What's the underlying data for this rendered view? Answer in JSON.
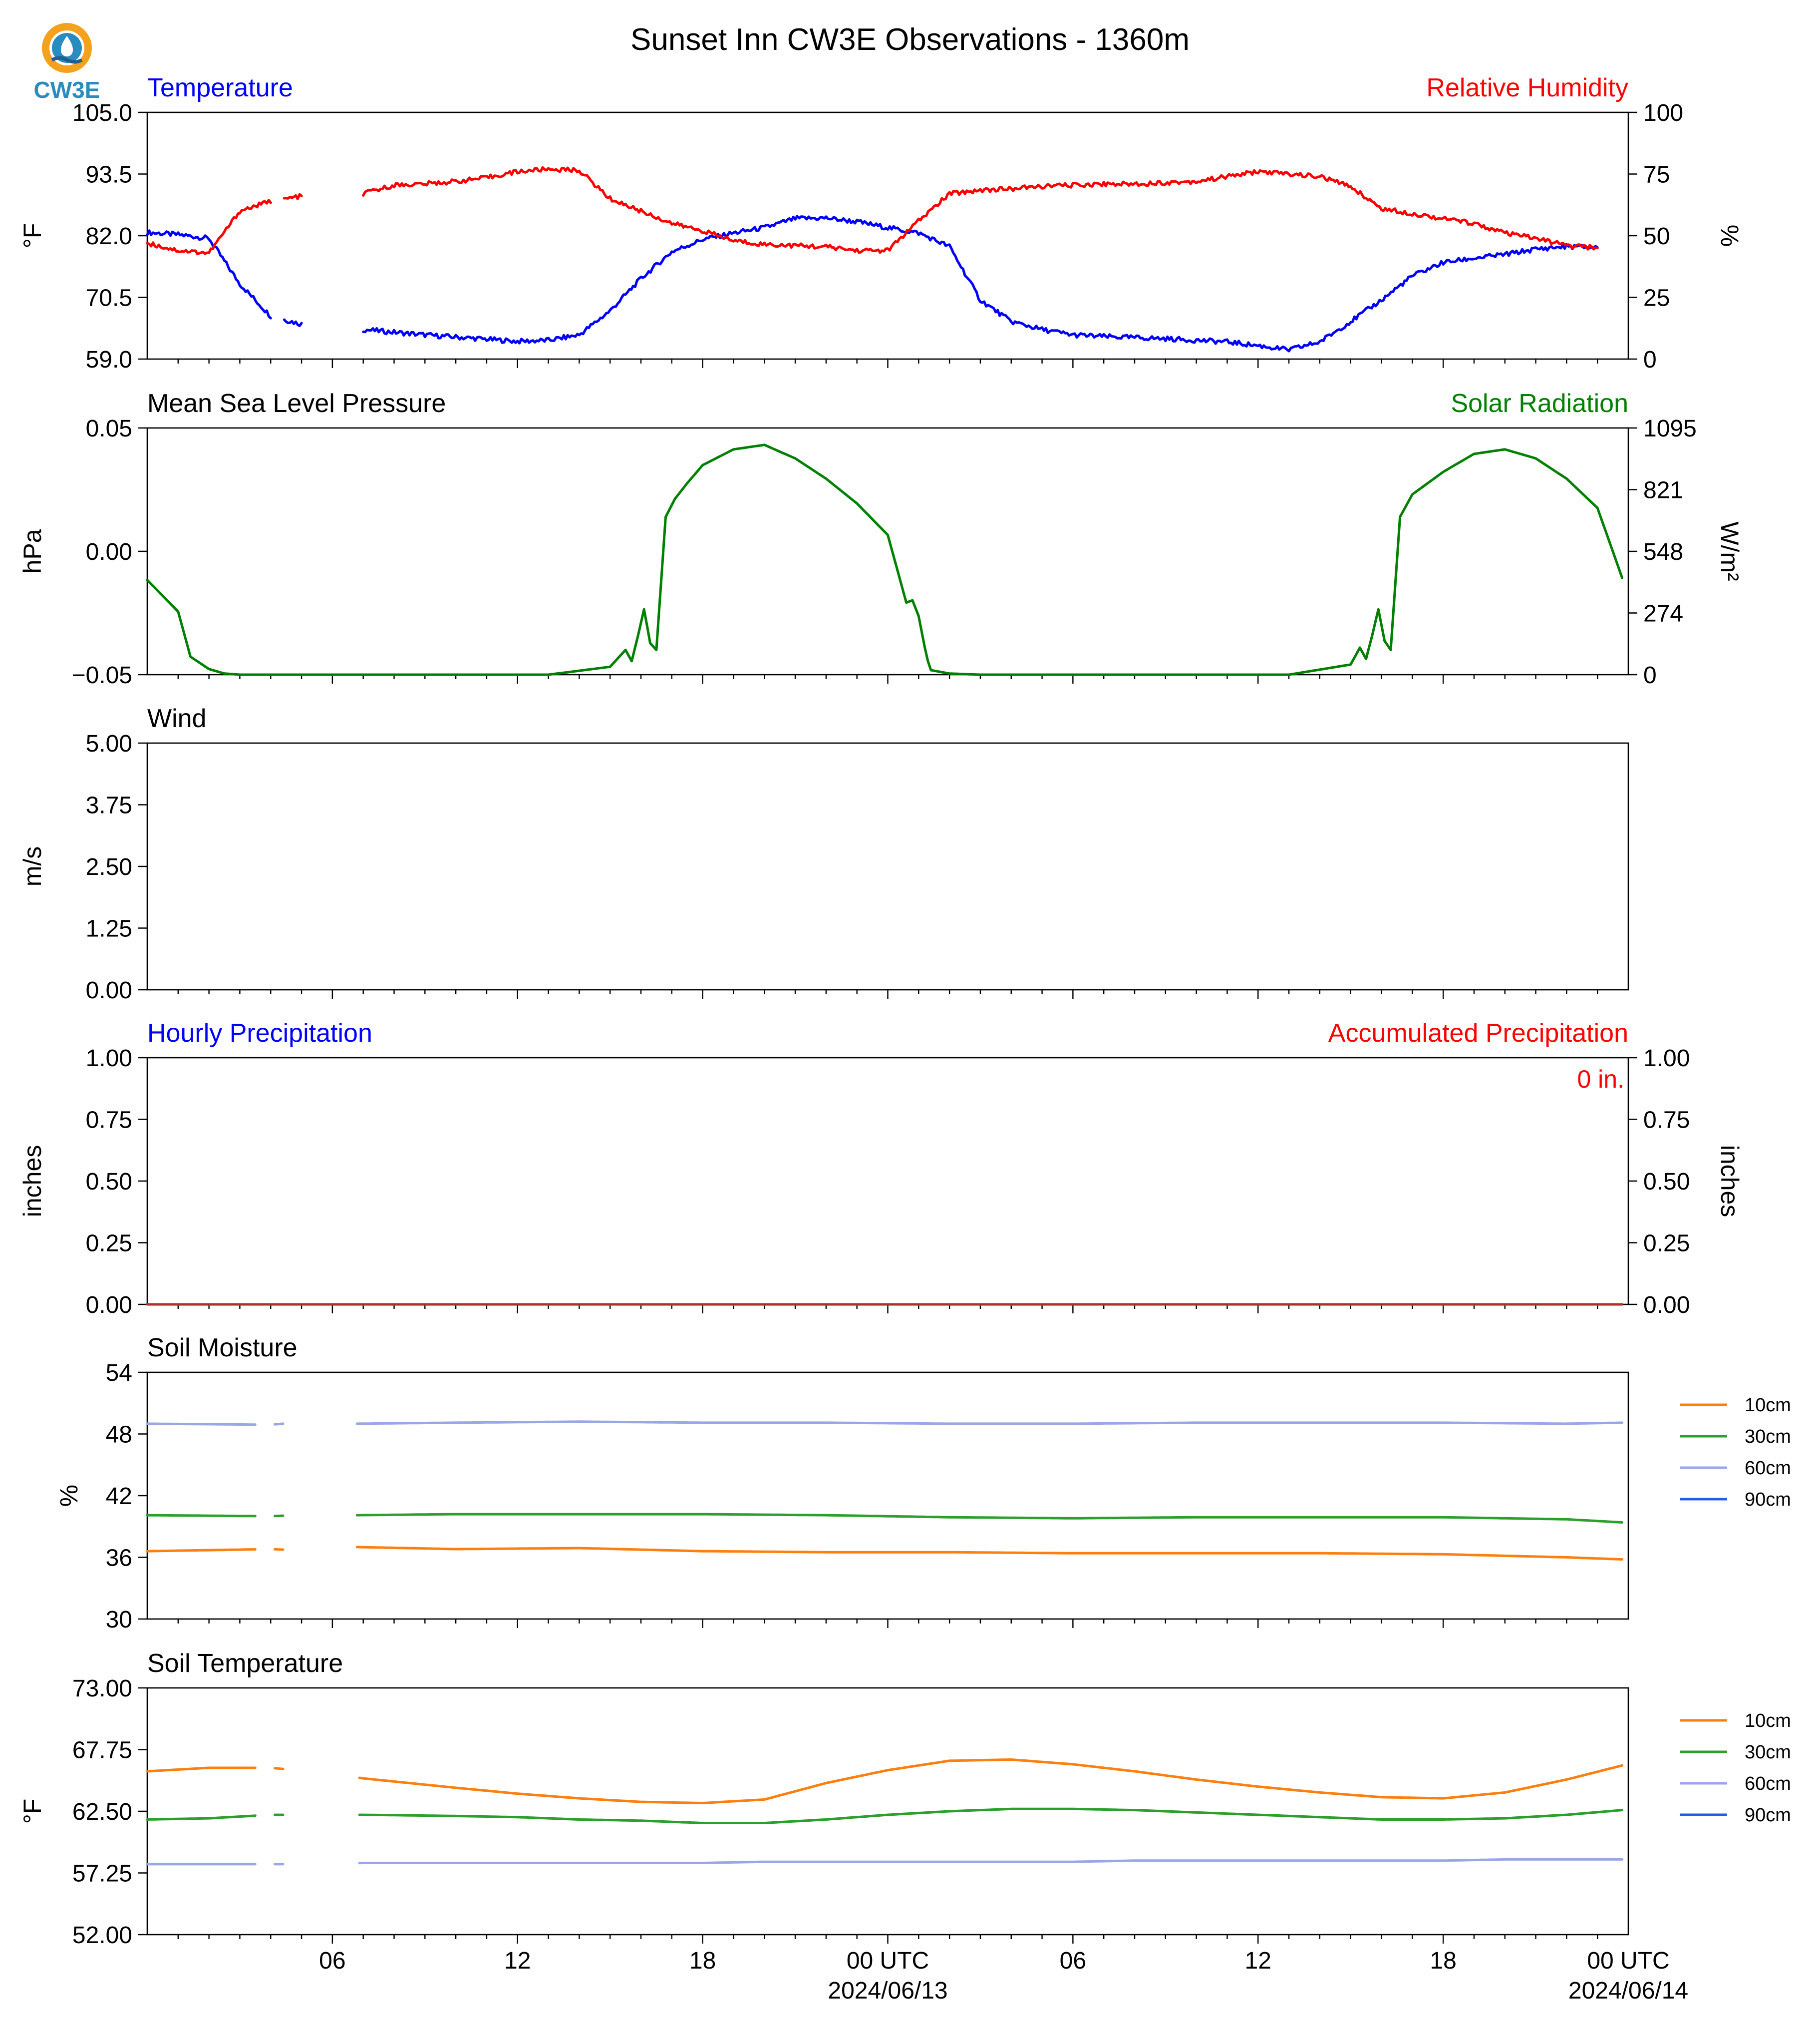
{
  "title": "Sunset Inn CW3E Observations - 1360m",
  "logo": {
    "text": "CW3E",
    "colors": {
      "ring": "#f4a11d",
      "drop": "#2a8bbf",
      "wave": "#1f5f8b",
      "text": "#2a8bbf"
    }
  },
  "colors": {
    "blue": "#0000ff",
    "red": "#ff0000",
    "green": "#008000",
    "orange": "#ff7f0e",
    "darkgreen": "#2ca02c",
    "lavender": "#9aa7e6",
    "royal": "#1f5fe8"
  },
  "x_axis": {
    "start": "2024-06-12T00:00Z",
    "end": "2024-06-14T00:00Z",
    "ticks": [
      {
        "label": "06",
        "sub": ""
      },
      {
        "label": "12",
        "sub": ""
      },
      {
        "label": "18",
        "sub": ""
      },
      {
        "label": "00 UTC",
        "sub": "2024/06/13"
      },
      {
        "label": "06",
        "sub": ""
      },
      {
        "label": "12",
        "sub": ""
      },
      {
        "label": "18",
        "sub": ""
      },
      {
        "label": "00 UTC",
        "sub": "2024/06/14"
      }
    ]
  },
  "chart_data": [
    {
      "type": "line",
      "title_left": "Temperature",
      "title_right": "Relative Humidity",
      "ylabel": "°F",
      "ylabel_right": "%",
      "ylim": [
        59.0,
        105.0
      ],
      "yticks": [
        "59.0",
        "70.5",
        "82.0",
        "93.5",
        "105.0"
      ],
      "ylim_right": [
        0,
        100
      ],
      "yticks_right": [
        "0",
        "25",
        "50",
        "75",
        "100"
      ],
      "x_hours": [
        0,
        1,
        2,
        3,
        4,
        5,
        5.3,
        6,
        7,
        8,
        9,
        10,
        11,
        12,
        13,
        14,
        15,
        16,
        17,
        18,
        19,
        20,
        21,
        22,
        23,
        24,
        25,
        26,
        27,
        28,
        29,
        30,
        31,
        32,
        33,
        34,
        35,
        36,
        37,
        38,
        39,
        40,
        41,
        42,
        43,
        44,
        45,
        46,
        47
      ],
      "series": [
        {
          "name": "Temperature",
          "axis": "left",
          "color": "#0000ff",
          "gaps": [
            [
              4.0,
              4.4
            ],
            [
              5.0,
              7.0
            ]
          ],
          "values": [
            82.6,
            82.2,
            81.5,
            73.0,
            67.0,
            65.5,
            65.2,
            64.6,
            64.5,
            64.0,
            63.5,
            63.1,
            62.7,
            62.3,
            62.5,
            63.5,
            68.0,
            74.0,
            79.0,
            81.3,
            82.5,
            83.5,
            85.2,
            85.3,
            84.6,
            83.5,
            82.5,
            80.0,
            70.0,
            66.0,
            64.5,
            63.5,
            63.2,
            63.0,
            62.8,
            62.5,
            62.2,
            61.5,
            60.7,
            62.2,
            66.0,
            70.0,
            74.5,
            77.0,
            77.8,
            78.5,
            79.5,
            80.0,
            79.8
          ]
        },
        {
          "name": "Relative Humidity",
          "axis": "right",
          "color": "#ff0000",
          "gaps": [
            [
              4.0,
              4.4
            ],
            [
              5.0,
              7.0
            ]
          ],
          "values": [
            47.0,
            44.0,
            43.0,
            60.0,
            64.0,
            66.0,
            66.0,
            66.5,
            67.0,
            70.5,
            71.0,
            72.0,
            73.5,
            76.0,
            77.0,
            76.5,
            65.0,
            60.0,
            55.0,
            52.0,
            48.0,
            46.5,
            46.0,
            45.5,
            44.0,
            44.0,
            56.0,
            67.0,
            68.5,
            69.0,
            70.0,
            70.5,
            71.0,
            71.0,
            71.5,
            72.0,
            74.0,
            76.0,
            75.0,
            74.0,
            70.0,
            61.0,
            59.0,
            57.0,
            55.0,
            51.0,
            49.0,
            46.0,
            45.0
          ]
        }
      ]
    },
    {
      "type": "line",
      "title_left": "Mean Sea Level Pressure",
      "title_right": "Solar Radiation",
      "ylabel": "hPa",
      "ylabel_right": "W/m²",
      "ylim": [
        -0.055,
        0.055
      ],
      "yticks": [
        "−0.05",
        "0.00",
        "0.05"
      ],
      "ylim_right": [
        0,
        1095
      ],
      "yticks_right": [
        "0",
        "274",
        "548",
        "821",
        "1095"
      ],
      "x_hours": [
        0,
        1,
        1.3,
        1.4,
        2,
        2.5,
        3,
        13,
        15,
        15.5,
        15.7,
        15.9,
        16.1,
        16.3,
        16.5,
        16.8,
        17.1,
        17.5,
        18,
        19,
        20,
        21,
        22,
        23,
        24,
        24.4,
        24.6,
        24.8,
        25,
        25.2,
        25.3,
        25.4,
        26,
        27,
        37,
        39,
        39.3,
        39.5,
        39.7,
        39.9,
        40.1,
        40.3,
        40.6,
        41,
        42,
        43,
        44,
        45,
        46,
        47,
        47.8
      ],
      "series": [
        {
          "name": "Solar Radiation",
          "axis": "right",
          "color": "#008000",
          "values": [
            420,
            280,
            130,
            80,
            25,
            5,
            0,
            0,
            35,
            110,
            60,
            170,
            290,
            140,
            110,
            700,
            780,
            850,
            930,
            1000,
            1020,
            960,
            870,
            760,
            620,
            420,
            320,
            330,
            260,
            120,
            60,
            20,
            5,
            0,
            0,
            45,
            120,
            70,
            175,
            290,
            150,
            110,
            700,
            800,
            900,
            980,
            1000,
            960,
            870,
            740,
            430
          ]
        }
      ]
    },
    {
      "type": "line",
      "title_left": "Wind",
      "ylabel": "m/s",
      "ylim": [
        0.0,
        5.0
      ],
      "yticks": [
        "0.00",
        "1.25",
        "2.50",
        "3.75",
        "5.00"
      ],
      "series": []
    },
    {
      "type": "line",
      "title_left": "Hourly Precipitation",
      "title_right": "Accumulated Precipitation",
      "annotation": "0 in.",
      "ylabel": "inches",
      "ylabel_right": "inches",
      "ylim": [
        0.0,
        1.0
      ],
      "yticks": [
        "0.00",
        "0.25",
        "0.50",
        "0.75",
        "1.00"
      ],
      "ylim_right": [
        0.0,
        1.0
      ],
      "yticks_right": [
        "0.00",
        "0.25",
        "0.50",
        "0.75",
        "1.00"
      ],
      "x_hours": [
        0,
        47.8
      ],
      "series": [
        {
          "name": "Hourly Precipitation",
          "axis": "left",
          "color": "#0000ff",
          "values": [
            0,
            0
          ]
        },
        {
          "name": "Accumulated Precipitation",
          "axis": "right",
          "color": "#b03030",
          "values": [
            0,
            0
          ]
        }
      ]
    },
    {
      "type": "line",
      "title_left": "Soil Moisture",
      "ylabel": "%",
      "ylim": [
        30,
        54
      ],
      "yticks": [
        "30",
        "36",
        "42",
        "48",
        "54"
      ],
      "x_hours": [
        0,
        4,
        4.8,
        5.3,
        6.8,
        10,
        14,
        18,
        22,
        26,
        30,
        34,
        38,
        42,
        46,
        47.8
      ],
      "legend": [
        "10cm",
        "30cm",
        "60cm",
        "90cm"
      ],
      "series": [
        {
          "name": "10cm",
          "color": "#ff7f0e",
          "gaps": [
            [
              3.5,
              4.1
            ],
            [
              4.4,
              6.8
            ]
          ],
          "values": [
            36.6,
            36.8,
            36.7,
            36.7,
            37.0,
            36.8,
            36.9,
            36.6,
            36.5,
            36.5,
            36.4,
            36.4,
            36.4,
            36.3,
            36.0,
            35.8
          ]
        },
        {
          "name": "30cm",
          "color": "#2ca02c",
          "gaps": [
            [
              3.5,
              4.1
            ],
            [
              4.4,
              6.8
            ]
          ],
          "values": [
            40.1,
            40.0,
            40.1,
            40.1,
            40.1,
            40.2,
            40.2,
            40.2,
            40.1,
            39.9,
            39.8,
            39.9,
            39.9,
            39.9,
            39.7,
            39.4
          ]
        },
        {
          "name": "60cm",
          "color": "#9aa7e6",
          "gaps": [
            [
              3.5,
              4.1
            ],
            [
              4.4,
              6.8
            ]
          ],
          "values": [
            49.0,
            48.9,
            49.1,
            49.1,
            49.0,
            49.1,
            49.2,
            49.1,
            49.1,
            49.0,
            49.0,
            49.1,
            49.1,
            49.1,
            49.0,
            49.1
          ]
        },
        {
          "name": "90cm",
          "color": "#1f5fe8",
          "values": []
        }
      ]
    },
    {
      "type": "line",
      "title_left": "Soil Temperature",
      "ylabel": "°F",
      "ylim": [
        52.0,
        73.0
      ],
      "yticks": [
        "52.00",
        "57.25",
        "62.50",
        "67.75",
        "73.00"
      ],
      "x_hours": [
        0,
        2,
        4,
        4.8,
        5.3,
        7,
        10,
        12,
        14,
        16,
        18,
        20,
        22,
        24,
        26,
        28,
        30,
        32,
        34,
        36,
        38,
        40,
        42,
        44,
        46,
        47.8
      ],
      "legend": [
        "10cm",
        "30cm",
        "60cm",
        "90cm"
      ],
      "series": [
        {
          "name": "10cm",
          "color": "#ff7f0e",
          "gaps": [
            [
              3.5,
              4.1
            ],
            [
              4.4,
              6.8
            ]
          ],
          "values": [
            65.9,
            66.2,
            66.2,
            66.0,
            66.0,
            65.3,
            64.5,
            64.0,
            63.6,
            63.3,
            63.2,
            63.5,
            64.9,
            66.0,
            66.8,
            66.9,
            66.5,
            65.9,
            65.2,
            64.6,
            64.1,
            63.7,
            63.6,
            64.1,
            65.2,
            66.4
          ]
        },
        {
          "name": "30cm",
          "color": "#2ca02c",
          "gaps": [
            [
              3.5,
              4.1
            ],
            [
              4.4,
              6.8
            ]
          ],
          "values": [
            61.8,
            61.9,
            62.2,
            62.2,
            62.2,
            62.2,
            62.1,
            62.0,
            61.8,
            61.7,
            61.5,
            61.5,
            61.8,
            62.2,
            62.5,
            62.7,
            62.7,
            62.6,
            62.4,
            62.2,
            62.0,
            61.8,
            61.8,
            61.9,
            62.2,
            62.6
          ]
        },
        {
          "name": "60cm",
          "color": "#9aa7e6",
          "gaps": [
            [
              3.5,
              4.1
            ],
            [
              4.4,
              6.8
            ]
          ],
          "values": [
            58.0,
            58.0,
            58.0,
            58.0,
            58.0,
            58.1,
            58.1,
            58.1,
            58.1,
            58.1,
            58.1,
            58.2,
            58.2,
            58.2,
            58.2,
            58.2,
            58.2,
            58.3,
            58.3,
            58.3,
            58.3,
            58.3,
            58.3,
            58.4,
            58.4,
            58.4
          ]
        },
        {
          "name": "90cm",
          "color": "#1f5fe8",
          "values": []
        }
      ]
    }
  ]
}
